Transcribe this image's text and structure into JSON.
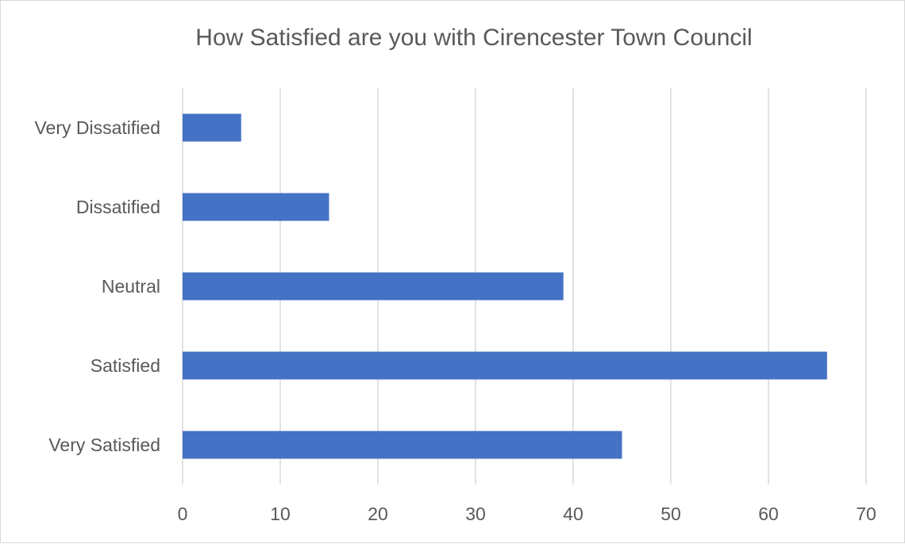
{
  "chart_data": {
    "type": "bar",
    "orientation": "horizontal",
    "title": "How Satisfied are you with Cirencester Town Council",
    "categories": [
      "Very Dissatified",
      "Dissatified",
      "Neutral",
      "Satisfied",
      "Very Satisfied"
    ],
    "values": [
      6,
      15,
      39,
      66,
      45
    ],
    "xlim": [
      0,
      70
    ],
    "xticks": [
      0,
      10,
      20,
      30,
      40,
      50,
      60,
      70
    ],
    "grid": "vertical",
    "legend": "none",
    "bar_color": "#4472c4",
    "grid_color": "#d9d9d9",
    "text_color": "#595959"
  }
}
